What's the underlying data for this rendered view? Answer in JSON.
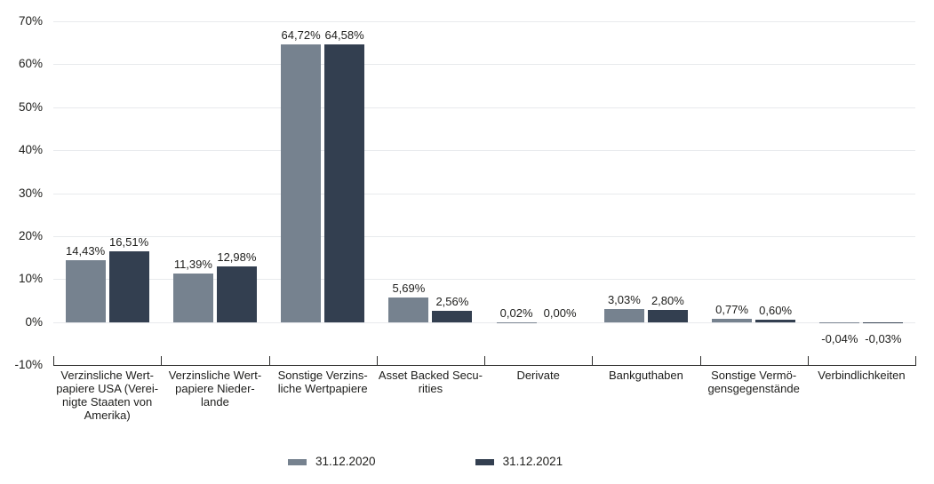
{
  "chart_data": {
    "type": "bar",
    "title": "",
    "categories": [
      "Verzinsliche Wert-\npapiere USA (Verei-\nnigte Staaten von\nAmerika)",
      "Verzinsliche Wert-\npapiere Nieder-\nlande",
      "Sonstige Verzins-\nliche Wertpapiere",
      "Asset Backed Secu-\nrities",
      "Derivate",
      "Bankguthaben",
      "Sonstige Vermö-\ngensgegenstände",
      "Verbindlichkeiten"
    ],
    "series": [
      {
        "name": "31.12.2020",
        "values": [
          14.43,
          11.39,
          64.72,
          5.69,
          0.02,
          3.03,
          0.77,
          -0.04
        ],
        "labels": [
          "14,43%",
          "11,39%",
          "64,72%",
          "5,69%",
          "0,02%",
          "3,03%",
          "0,77%",
          "-0,04%"
        ]
      },
      {
        "name": "31.12.2021",
        "values": [
          16.51,
          12.98,
          64.58,
          2.56,
          0.0,
          2.8,
          0.6,
          -0.03
        ],
        "labels": [
          "16,51%",
          "12,98%",
          "64,58%",
          "2,56%",
          "0,00%",
          "2,80%",
          "0,60%",
          "-0,03%"
        ]
      }
    ],
    "y_axis": {
      "min": -10,
      "max": 70,
      "tick_values": [
        70,
        60,
        50,
        40,
        30,
        20,
        10,
        0,
        -10
      ],
      "tick_labels": [
        "70%",
        "60%",
        "50%",
        "40%",
        "30%",
        "20%",
        "10%",
        "0%",
        "-10%"
      ]
    },
    "grid": true,
    "legend_position": "bottom"
  },
  "colors": {
    "series1": "#76828F",
    "series2": "#333F50",
    "gridline": "#E8EAED",
    "axis": "#2D2D2C",
    "text": "#1D1D1B",
    "background": "#FFFFFF"
  }
}
